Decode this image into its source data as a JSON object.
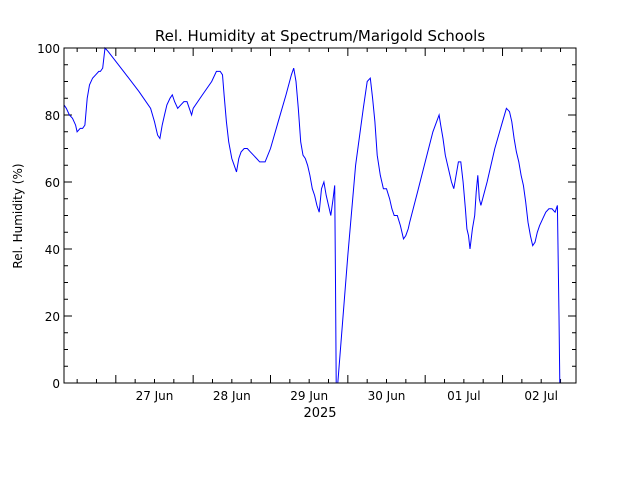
{
  "chart_data": {
    "type": "line",
    "title": "Rel. Humidity at Spectrum/Marigold Schools",
    "ylabel": "Rel. Humidity (%)",
    "xlabel_year": "2025",
    "ylim": [
      0,
      100
    ],
    "yticks": [
      "0",
      "20",
      "40",
      "60",
      "80",
      "100"
    ],
    "xlim": [
      26.33,
      32.95
    ],
    "xticks": [
      {
        "x": 27,
        "label": "27 Jun"
      },
      {
        "x": 28,
        "label": "28 Jun"
      },
      {
        "x": 29,
        "label": "29 Jun"
      },
      {
        "x": 30,
        "label": "30 Jun"
      },
      {
        "x": 31,
        "label": "01 Jul"
      },
      {
        "x": 32,
        "label": "02 Jul"
      }
    ],
    "series": [
      {
        "color": "#0000ff",
        "points": [
          [
            26.33,
            83
          ],
          [
            26.36,
            82
          ],
          [
            26.4,
            80
          ],
          [
            26.44,
            79
          ],
          [
            26.48,
            77
          ],
          [
            26.5,
            75
          ],
          [
            26.54,
            76
          ],
          [
            26.57,
            76
          ],
          [
            26.6,
            77
          ],
          [
            26.63,
            85
          ],
          [
            26.66,
            89
          ],
          [
            26.7,
            91
          ],
          [
            26.74,
            92
          ],
          [
            26.78,
            93
          ],
          [
            26.8,
            93
          ],
          [
            26.83,
            94
          ],
          [
            26.86,
            100
          ],
          [
            26.9,
            99
          ],
          [
            27.1,
            93
          ],
          [
            27.3,
            87
          ],
          [
            27.45,
            82
          ],
          [
            27.5,
            78
          ],
          [
            27.54,
            74
          ],
          [
            27.57,
            73
          ],
          [
            27.6,
            77
          ],
          [
            27.63,
            80
          ],
          [
            27.66,
            83
          ],
          [
            27.7,
            85
          ],
          [
            27.73,
            86
          ],
          [
            27.76,
            84
          ],
          [
            27.8,
            82
          ],
          [
            27.84,
            83
          ],
          [
            27.88,
            84
          ],
          [
            27.92,
            84
          ],
          [
            27.95,
            82
          ],
          [
            27.98,
            80
          ],
          [
            28.0,
            82
          ],
          [
            28.12,
            86
          ],
          [
            28.24,
            90
          ],
          [
            28.3,
            93
          ],
          [
            28.35,
            93
          ],
          [
            28.38,
            92
          ],
          [
            28.4,
            86
          ],
          [
            28.43,
            78
          ],
          [
            28.46,
            72
          ],
          [
            28.5,
            67
          ],
          [
            28.53,
            65
          ],
          [
            28.56,
            63
          ],
          [
            28.59,
            67
          ],
          [
            28.62,
            69
          ],
          [
            28.66,
            70
          ],
          [
            28.7,
            70
          ],
          [
            28.74,
            69
          ],
          [
            28.78,
            68
          ],
          [
            28.82,
            67
          ],
          [
            28.86,
            66
          ],
          [
            28.9,
            66
          ],
          [
            28.93,
            66
          ],
          [
            29.0,
            70
          ],
          [
            29.1,
            78
          ],
          [
            29.2,
            86
          ],
          [
            29.27,
            92
          ],
          [
            29.3,
            94
          ],
          [
            29.33,
            90
          ],
          [
            29.36,
            82
          ],
          [
            29.39,
            72
          ],
          [
            29.42,
            68
          ],
          [
            29.45,
            67
          ],
          [
            29.48,
            65
          ],
          [
            29.51,
            62
          ],
          [
            29.54,
            58
          ],
          [
            29.57,
            56
          ],
          [
            29.6,
            53
          ],
          [
            29.63,
            51
          ],
          [
            29.66,
            58
          ],
          [
            29.69,
            60
          ],
          [
            29.72,
            56
          ],
          [
            29.75,
            53
          ],
          [
            29.78,
            50
          ],
          [
            29.81,
            55
          ],
          [
            29.83,
            59
          ],
          [
            29.84,
            30
          ],
          [
            29.85,
            0
          ],
          [
            29.87,
            0
          ],
          [
            30.0,
            38
          ],
          [
            30.1,
            65
          ],
          [
            30.2,
            82
          ],
          [
            30.25,
            90
          ],
          [
            30.29,
            91
          ],
          [
            30.32,
            85
          ],
          [
            30.35,
            78
          ],
          [
            30.38,
            68
          ],
          [
            30.42,
            62
          ],
          [
            30.46,
            58
          ],
          [
            30.5,
            58
          ],
          [
            30.54,
            55
          ],
          [
            30.57,
            52
          ],
          [
            30.6,
            50
          ],
          [
            30.64,
            50
          ],
          [
            30.68,
            47
          ],
          [
            30.72,
            43
          ],
          [
            30.75,
            44
          ],
          [
            30.78,
            46
          ],
          [
            30.8,
            48
          ],
          [
            30.9,
            57
          ],
          [
            31.0,
            66
          ],
          [
            31.1,
            75
          ],
          [
            31.18,
            80
          ],
          [
            31.2,
            77
          ],
          [
            31.23,
            73
          ],
          [
            31.26,
            68
          ],
          [
            31.3,
            64
          ],
          [
            31.34,
            60
          ],
          [
            31.37,
            58
          ],
          [
            31.4,
            62
          ],
          [
            31.43,
            66
          ],
          [
            31.46,
            66
          ],
          [
            31.49,
            60
          ],
          [
            31.52,
            52
          ],
          [
            31.54,
            46
          ],
          [
            31.56,
            44
          ],
          [
            31.58,
            40
          ],
          [
            31.61,
            46
          ],
          [
            31.64,
            50
          ],
          [
            31.66,
            57
          ],
          [
            31.68,
            62
          ],
          [
            31.7,
            55
          ],
          [
            31.72,
            53
          ],
          [
            31.8,
            60
          ],
          [
            31.9,
            70
          ],
          [
            32.0,
            78
          ],
          [
            32.05,
            82
          ],
          [
            32.09,
            81
          ],
          [
            32.12,
            78
          ],
          [
            32.15,
            73
          ],
          [
            32.18,
            69
          ],
          [
            32.21,
            66
          ],
          [
            32.24,
            62
          ],
          [
            32.27,
            59
          ],
          [
            32.3,
            54
          ],
          [
            32.33,
            48
          ],
          [
            32.36,
            44
          ],
          [
            32.39,
            41
          ],
          [
            32.42,
            42
          ],
          [
            32.45,
            45
          ],
          [
            32.48,
            47
          ],
          [
            32.52,
            49
          ],
          [
            32.56,
            51
          ],
          [
            32.6,
            52
          ],
          [
            32.64,
            52
          ],
          [
            32.68,
            51
          ],
          [
            32.71,
            53
          ],
          [
            32.73,
            20
          ],
          [
            32.74,
            0
          ]
        ]
      }
    ]
  }
}
